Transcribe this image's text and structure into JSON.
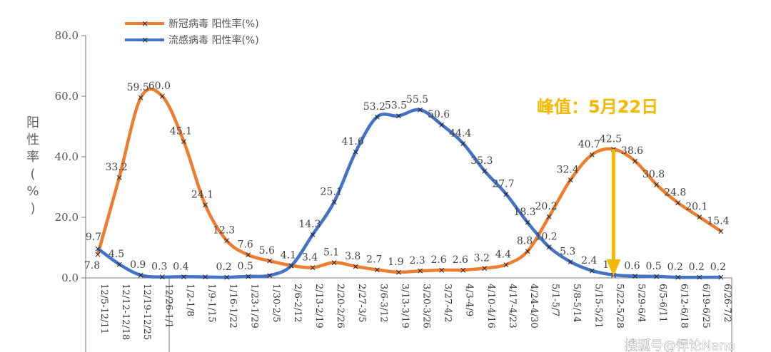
{
  "chart_data": {
    "type": "line",
    "ylabel": "阳性率(%)",
    "ylim": [
      0,
      80
    ],
    "yticks": [
      "0.0",
      "20.0",
      "40.0",
      "60.0",
      "80.0"
    ],
    "grid": false,
    "legend": "top-left",
    "categories": [
      "12/5-12/11",
      "12/12-12/18",
      "12/19-12/25",
      "12/26-1/1",
      "1/2-1/8",
      "1/9-1/15",
      "1/16-1/22",
      "1/23-1/29",
      "1/30-2/5",
      "2/6-2/12",
      "2/13-2/19",
      "2/20-2/26",
      "2/27-3/5",
      "3/6-3/12",
      "3/13-3/19",
      "3/20-3/26",
      "3/27-4/2",
      "4/3-4/9",
      "4/10-4/16",
      "4/17-4/23",
      "4/24-4/30",
      "5/1-5/7",
      "5/8-5/14",
      "5/15-5/21",
      "5/22-5/28",
      "5/29-6/4",
      "6/5-6/11",
      "6/12-6/18",
      "6/19-6/25",
      "6/26-7/2"
    ],
    "series": [
      {
        "name": "新冠病毒 阳性率(%)",
        "color": "#ed7d31",
        "values": [
          7.8,
          33.2,
          59.5,
          60.0,
          45.1,
          24.1,
          12.3,
          7.6,
          5.6,
          4.1,
          3.4,
          5.1,
          3.8,
          2.7,
          1.9,
          2.3,
          2.6,
          2.6,
          3.2,
          4.4,
          8.8,
          20.2,
          32.4,
          40.7,
          42.5,
          38.6,
          30.8,
          24.8,
          20.1,
          15.4
        ],
        "labels": [
          "7.8",
          "33.2",
          "59.5",
          "60.0",
          "45.1",
          "24.1",
          "12.3",
          "7.6",
          "5.6",
          "4.1",
          "3.4",
          "5.1",
          "3.8",
          "2.7",
          "1.9",
          "2.3",
          "2.6",
          "2.6",
          "3.2",
          "4.4",
          "8.8",
          "20.2",
          "32.4",
          "40.7",
          "42.5",
          "38.6",
          "30.8",
          "24.8",
          "20.1",
          "15.4"
        ]
      },
      {
        "name": "流感病毒 阳性率(%)",
        "color": "#4472c4",
        "values": [
          9.7,
          4.5,
          0.9,
          0.3,
          0.4,
          0.3,
          0.2,
          0.5,
          0.8,
          4.0,
          14.3,
          25.1,
          41.6,
          53.2,
          53.5,
          55.5,
          50.6,
          44.4,
          35.3,
          27.7,
          18.3,
          10.2,
          5.3,
          2.4,
          1.0,
          0.6,
          0.5,
          0.2,
          0.2,
          0.2
        ],
        "labels": [
          "9.7",
          "4.5",
          "0.9",
          "0.3",
          "0.4",
          null,
          "0.2",
          "0.5",
          null,
          null,
          "14.3",
          "25.1",
          "41.6",
          "53.2",
          "53.5",
          "55.5",
          "50.6",
          "44.4",
          "35.3",
          "27.7",
          "18.3",
          "10.2",
          "5.3",
          "2.4",
          "1.0",
          "0.6",
          "0.5",
          "0.2",
          "0.2",
          "0.2"
        ]
      }
    ],
    "annotation": {
      "text": "峰值：5月22日",
      "category": "5/22-5/28",
      "color": "#f5b800"
    }
  },
  "watermark": "搜狐号@悍论Nano"
}
